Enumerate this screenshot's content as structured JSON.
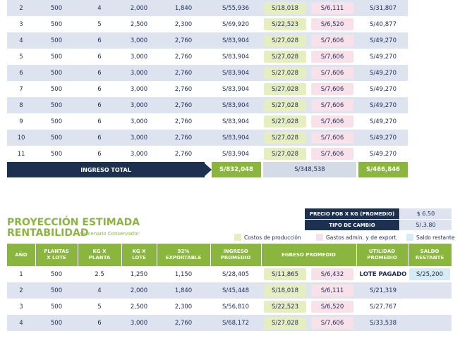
{
  "top_table": {
    "rows": [
      [
        "2",
        "500",
        "4",
        "2,000",
        "1,840",
        "S/55,936",
        "S/18,018",
        "S/6,111",
        "S/31,807"
      ],
      [
        "3",
        "500",
        "5",
        "2,500",
        "2,300",
        "S/69,920",
        "S/22,523",
        "S/6,520",
        "S/40,877"
      ],
      [
        "4",
        "500",
        "6",
        "3,000",
        "2,760",
        "S/83,904",
        "S/27,028",
        "S/7,606",
        "S/49,270"
      ],
      [
        "5",
        "500",
        "6",
        "3,000",
        "2,760",
        "S/83,904",
        "S/27,028",
        "S/7,606",
        "S/49,270"
      ],
      [
        "6",
        "500",
        "6",
        "3,000",
        "2,760",
        "S/83,904",
        "S/27,028",
        "S/7,606",
        "S/49,270"
      ],
      [
        "7",
        "500",
        "6",
        "3,000",
        "2,760",
        "S/83,904",
        "S/27,028",
        "S/7,606",
        "S/49,270"
      ],
      [
        "8",
        "500",
        "6",
        "3,000",
        "2,760",
        "S/83,904",
        "S/27,028",
        "S/7,606",
        "S/49,270"
      ],
      [
        "9",
        "500",
        "6",
        "3,000",
        "2,760",
        "S/83,904",
        "S/27,028",
        "S/7,606",
        "S/49,270"
      ],
      [
        "10",
        "500",
        "6",
        "3,000",
        "2,760",
        "S/83,904",
        "S/27,028",
        "S/7,606",
        "S/49,270"
      ],
      [
        "11",
        "500",
        "6",
        "3,000",
        "2,760",
        "S/83,904",
        "S/27,028",
        "S/7,606",
        "S/49,270"
      ]
    ],
    "total": {
      "label": "INGRESO TOTAL",
      "ingreso": "S/832,048",
      "egreso": "S/348,538",
      "utilidad": "S/466,846"
    }
  },
  "section": {
    "title_line1": "PROYECCIÓN ESTIMADA",
    "title_line2": "RENTABILIDAD",
    "subtitle": "*Escenario Conservador"
  },
  "info": {
    "rows": [
      [
        "PRECIO FOB X KG (PROMEDIO)",
        "$ 6.50"
      ],
      [
        "TIPO DE CAMBIO",
        "S/.3.80"
      ]
    ]
  },
  "legend": [
    "Costos de producción",
    "Gastos admin. y de export.",
    "Saldo restante"
  ],
  "table": {
    "headers": [
      [
        "AÑO"
      ],
      [
        "PLANTAS",
        "X LOTE"
      ],
      [
        "KG X",
        "PLANTA"
      ],
      [
        "KG X",
        "LOTE"
      ],
      [
        "92%",
        "EXPORTABLE"
      ],
      [
        "INGRESO",
        "PROMEDIO"
      ],
      [
        "EGRESO PROMEDIO"
      ],
      [
        "UTILIDAD",
        "PROMEDIO"
      ],
      [
        "SALDO",
        "RESTANTE"
      ]
    ],
    "rows": [
      [
        "1",
        "500",
        "2.5",
        "1,250",
        "1,150",
        "S/28,405",
        "S/11,865",
        "S/6,432",
        "LOTE PAGADO",
        "S/25,200"
      ],
      [
        "2",
        "500",
        "4",
        "2,000",
        "1,840",
        "S/45,448",
        "S/18,018",
        "S/6,111",
        "S/21,319"
      ],
      [
        "3",
        "500",
        "5",
        "2,500",
        "2,300",
        "S/56,810",
        "S/22,523",
        "S/6,520",
        "S/27,767"
      ],
      [
        "4",
        "500",
        "6",
        "3,000",
        "2,760",
        "S/68,172",
        "S/27,028",
        "S/7,606",
        "S/33,538"
      ]
    ]
  }
}
